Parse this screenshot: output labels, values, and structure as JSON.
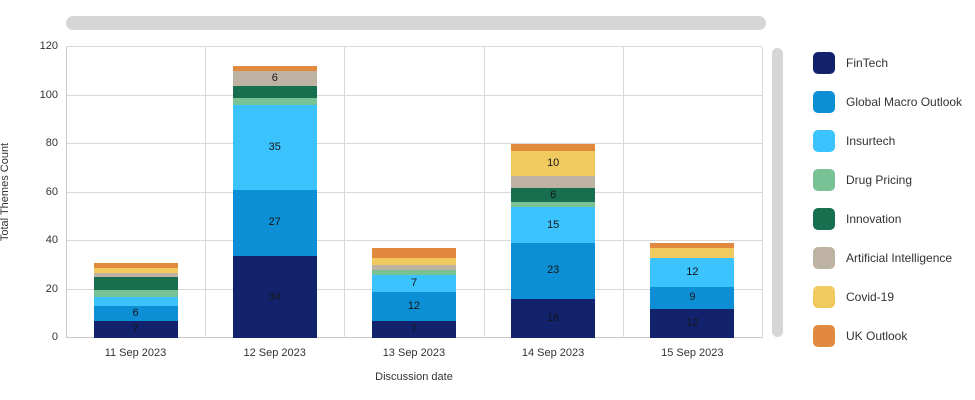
{
  "chart_data": {
    "type": "bar",
    "stacked": true,
    "title": "",
    "xlabel": "Discussion date",
    "ylabel": "Total Themes Count",
    "categories": [
      "11 Sep 2023",
      "12 Sep 2023",
      "13 Sep 2023",
      "14 Sep 2023",
      "15 Sep 2023"
    ],
    "series": [
      {
        "name": "FinTech",
        "color": "#12226d",
        "values": [
          7,
          34,
          7,
          16,
          12
        ]
      },
      {
        "name": "Global Macro Outlook",
        "color": "#0d8fd6",
        "values": [
          6,
          27,
          12,
          23,
          9
        ]
      },
      {
        "name": "Insurtech",
        "color": "#3bc3fd",
        "values": [
          4,
          35,
          7,
          15,
          12
        ]
      },
      {
        "name": "Drug Pricing",
        "color": "#78c295",
        "values": [
          3,
          3,
          2,
          2,
          0
        ]
      },
      {
        "name": "Innovation",
        "color": "#186f50",
        "values": [
          5,
          5,
          0,
          6,
          0
        ]
      },
      {
        "name": "Artificial Intelligence",
        "color": "#beb3a3",
        "values": [
          2,
          6,
          2,
          5,
          0
        ]
      },
      {
        "name": "Covid-19",
        "color": "#f0ca5e",
        "values": [
          2,
          0,
          3,
          10,
          4
        ]
      },
      {
        "name": "UK Outlook",
        "color": "#e18a3d",
        "values": [
          2,
          2,
          4,
          3,
          2
        ]
      }
    ],
    "ylim": [
      0,
      120
    ],
    "yticks": [
      0,
      20,
      40,
      60,
      80,
      100,
      120
    ],
    "grid": true,
    "legend_position": "right",
    "bar_label_min_value": 6,
    "bar_label_color": "#161616",
    "gridline_color": "#d9d9d9",
    "scrollbar_color": "#d6d6d6"
  }
}
